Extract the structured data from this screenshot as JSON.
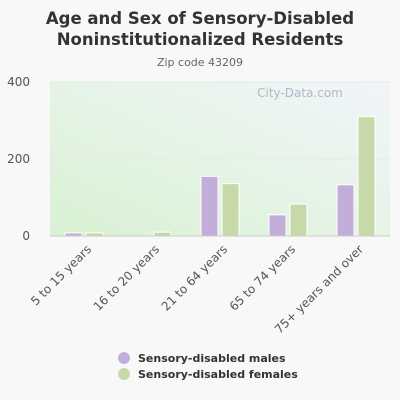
{
  "title_line1": "Age and Sex of Sensory-Disabled",
  "title_line2": "Noninstitutionalized Residents",
  "subtitle": "Zip code 43209",
  "watermark": "City-Data.com",
  "colors": {
    "males": "#c3aed9",
    "females": "#c7d9a8",
    "plot_bg_top": "#f2f4fa",
    "plot_bg_bottom": "#d9f2d3"
  },
  "chart_data": {
    "type": "bar",
    "categories": [
      "5 to 15 years",
      "16 to 20 years",
      "21 to 64 years",
      "65 to 74 years",
      "75+ years and over"
    ],
    "series": [
      {
        "name": "Sensory-disabled males",
        "values": [
          8,
          0,
          155,
          55,
          133
        ]
      },
      {
        "name": "Sensory-disabled females",
        "values": [
          8,
          10,
          136,
          83,
          310
        ]
      }
    ],
    "ylim": [
      0,
      400
    ],
    "yticks": [
      0,
      200,
      400
    ],
    "ytick_labels": [
      "0",
      "200",
      "400"
    ],
    "grid": true,
    "legend": "bottom"
  }
}
